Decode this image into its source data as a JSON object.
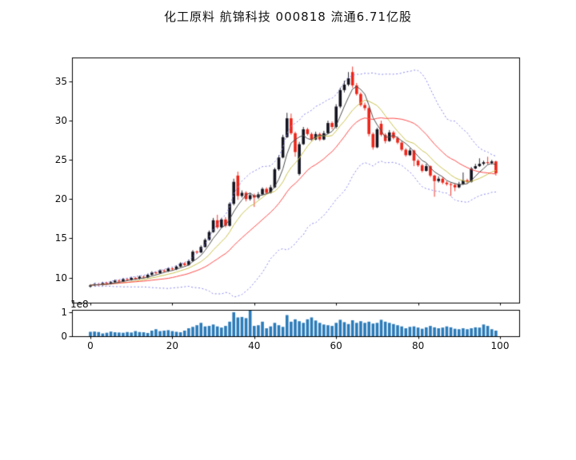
{
  "title": "化工原料 航锦科技 000818 流通6.71亿股",
  "chart_data": [
    {
      "type": "candlestick",
      "panel": "price",
      "title": "化工原料 航锦科技 000818 流通6.71亿股",
      "x_range": [
        0,
        99
      ],
      "ylim": [
        6.8,
        38.1
      ],
      "yticks": [
        10,
        15,
        20,
        25,
        30,
        35
      ],
      "xticks": [
        0,
        20,
        40,
        60,
        80,
        100
      ],
      "xtick_labels_visible": false,
      "grid": false,
      "up_color": "#141420",
      "down_color": "#ee2418",
      "open": [
        8.85,
        9.0,
        9.15,
        9.05,
        9.3,
        9.2,
        9.4,
        9.6,
        9.5,
        9.8,
        9.7,
        9.95,
        9.85,
        10.1,
        10.0,
        10.35,
        10.65,
        10.55,
        10.9,
        10.8,
        11.15,
        11.05,
        11.4,
        11.8,
        11.6,
        12.1,
        13.3,
        13.2,
        13.9,
        14.8,
        15.8,
        17.3,
        16.4,
        17.4,
        16.6,
        19.4,
        23.0,
        20.4,
        20.8,
        20.0,
        20.5,
        20.2,
        20.6,
        21.3,
        20.8,
        21.5,
        23.8,
        25.3,
        27.9,
        30.3,
        28.4,
        23.2,
        27.0,
        28.9,
        28.3,
        27.6,
        28.3,
        27.6,
        28.4,
        29.7,
        29.2,
        31.8,
        33.9,
        34.6,
        36.2,
        34.5,
        33.4,
        32.0,
        31.6,
        28.3,
        26.6,
        29.6,
        28.2,
        27.4,
        28.5,
        27.8,
        27.2,
        26.3,
        25.6,
        26.2,
        24.9,
        24.3,
        23.6,
        24.2,
        23.0,
        22.3,
        22.6,
        22.1,
        21.9,
        21.8,
        21.5,
        21.9,
        22.4,
        22.2,
        23.9,
        24.2,
        24.5,
        24.7,
        24.6,
        24.8
      ],
      "high": [
        9.15,
        9.3,
        9.3,
        9.45,
        9.45,
        9.55,
        9.75,
        9.75,
        9.95,
        9.9,
        10.1,
        10.1,
        10.25,
        10.25,
        10.5,
        10.8,
        10.8,
        11.05,
        11.05,
        11.3,
        11.3,
        11.55,
        11.95,
        11.95,
        12.3,
        13.5,
        13.45,
        14.1,
        15.0,
        16.0,
        17.6,
        18.0,
        17.6,
        17.7,
        19.6,
        22.6,
        23.5,
        21.1,
        21.0,
        20.8,
        20.7,
        20.9,
        21.5,
        21.5,
        21.8,
        24.0,
        25.6,
        28.2,
        31.0,
        30.9,
        28.6,
        27.3,
        29.2,
        29.1,
        28.5,
        28.6,
        28.5,
        28.7,
        30.0,
        29.9,
        32.1,
        34.2,
        35.1,
        36.2,
        36.9,
        34.8,
        33.6,
        32.3,
        31.8,
        28.5,
        29.1,
        30.0,
        28.4,
        28.8,
        28.7,
        28.0,
        27.4,
        26.5,
        26.5,
        26.3,
        25.1,
        24.5,
        24.5,
        24.3,
        23.1,
        22.9,
        22.8,
        22.3,
        22.1,
        22.0,
        22.2,
        23.4,
        22.6,
        24.1,
        24.5,
        25.2,
        24.9,
        25.4,
        25.0,
        24.9
      ],
      "low": [
        8.7,
        8.9,
        8.9,
        8.95,
        9.05,
        9.1,
        9.3,
        9.35,
        9.4,
        9.55,
        9.6,
        9.7,
        9.75,
        9.85,
        9.9,
        10.25,
        10.4,
        10.45,
        10.65,
        10.7,
        10.9,
        10.95,
        11.3,
        11.45,
        11.5,
        12.0,
        13.0,
        13.1,
        13.8,
        14.7,
        15.7,
        16.2,
        16.3,
        16.4,
        16.5,
        19.2,
        19.9,
        20.2,
        19.7,
        19.8,
        19.0,
        20.0,
        20.5,
        20.6,
        20.7,
        21.4,
        23.6,
        25.2,
        27.8,
        28.2,
        25.4,
        23.0,
        26.9,
        28.1,
        27.4,
        27.5,
        27.4,
        27.5,
        28.3,
        28.9,
        29.0,
        31.6,
        33.6,
        34.4,
        34.2,
        33.2,
        31.8,
        31.3,
        28.0,
        26.3,
        26.5,
        28.0,
        27.1,
        27.3,
        27.6,
        27.0,
        26.1,
        25.4,
        25.5,
        24.2,
        24.1,
        23.4,
        23.5,
        22.8,
        20.3,
        22.1,
        21.9,
        21.7,
        20.4,
        21.0,
        21.4,
        21.8,
        22.0,
        22.1,
        23.8,
        24.1,
        24.3,
        24.4,
        24.4,
        23.0
      ],
      "close": [
        9.0,
        9.15,
        9.05,
        9.3,
        9.2,
        9.4,
        9.6,
        9.5,
        9.8,
        9.7,
        9.95,
        9.85,
        10.1,
        10.0,
        10.35,
        10.65,
        10.55,
        10.9,
        10.8,
        11.15,
        11.05,
        11.4,
        11.8,
        11.6,
        12.1,
        13.3,
        13.2,
        13.9,
        14.8,
        15.8,
        17.3,
        16.4,
        17.4,
        16.6,
        19.4,
        22.2,
        20.4,
        20.8,
        20.0,
        20.5,
        20.2,
        20.6,
        21.3,
        20.8,
        21.5,
        23.8,
        25.3,
        27.9,
        30.3,
        28.4,
        26.0,
        27.0,
        28.9,
        28.3,
        27.6,
        28.3,
        27.6,
        28.4,
        29.7,
        29.2,
        31.8,
        33.9,
        34.6,
        35.4,
        34.5,
        33.4,
        32.0,
        31.6,
        28.3,
        26.6,
        28.9,
        28.2,
        27.4,
        28.5,
        27.8,
        27.2,
        26.3,
        25.6,
        26.2,
        24.9,
        24.3,
        23.6,
        24.2,
        23.0,
        22.3,
        22.6,
        22.1,
        21.9,
        21.8,
        21.5,
        21.9,
        22.4,
        22.2,
        23.9,
        24.2,
        24.5,
        24.7,
        24.6,
        24.8,
        23.3
      ],
      "overlays": [
        {
          "name": "ma5",
          "kind": "sma",
          "window": 5,
          "color": "#4d4d4d",
          "linestyle": "solid"
        },
        {
          "name": "ma10",
          "kind": "sma",
          "window": 10,
          "color": "#c9c24f",
          "linestyle": "solid"
        },
        {
          "name": "ma20",
          "kind": "sma",
          "window": 20,
          "color": "#ff4a4a",
          "linestyle": "solid"
        },
        {
          "name": "bollinger-upper",
          "kind": "boll",
          "window": 20,
          "mult": 2,
          "color": "#8484ec",
          "linestyle": "dotted"
        },
        {
          "name": "bollinger-lower",
          "kind": "boll",
          "window": 20,
          "mult": -2,
          "color": "#8484ec",
          "linestyle": "dotted"
        }
      ]
    },
    {
      "type": "bar",
      "panel": "volume",
      "unit_offset_label": "1e8",
      "yticks": [
        0,
        1
      ],
      "xticks": [
        0,
        20,
        40,
        60,
        80,
        100
      ],
      "ylim": [
        0,
        1.12
      ],
      "color": "#2b7bb9",
      "values": [
        0.17,
        0.18,
        0.16,
        0.1,
        0.13,
        0.18,
        0.15,
        0.14,
        0.13,
        0.16,
        0.14,
        0.2,
        0.16,
        0.15,
        0.12,
        0.22,
        0.28,
        0.2,
        0.22,
        0.24,
        0.2,
        0.17,
        0.15,
        0.22,
        0.32,
        0.38,
        0.45,
        0.55,
        0.4,
        0.42,
        0.48,
        0.4,
        0.35,
        0.42,
        0.6,
        1.0,
        0.78,
        0.8,
        0.75,
        1.08,
        0.42,
        0.45,
        0.6,
        0.32,
        0.4,
        0.55,
        0.45,
        0.38,
        0.88,
        0.6,
        0.7,
        0.62,
        0.55,
        0.7,
        0.78,
        0.65,
        0.55,
        0.48,
        0.45,
        0.42,
        0.55,
        0.68,
        0.58,
        0.5,
        0.66,
        0.55,
        0.62,
        0.55,
        0.6,
        0.52,
        0.55,
        0.68,
        0.6,
        0.55,
        0.5,
        0.45,
        0.4,
        0.32,
        0.38,
        0.4,
        0.35,
        0.3,
        0.36,
        0.42,
        0.36,
        0.32,
        0.35,
        0.4,
        0.36,
        0.3,
        0.28,
        0.32,
        0.28,
        0.32,
        0.36,
        0.35,
        0.48,
        0.42,
        0.28,
        0.22
      ]
    }
  ]
}
